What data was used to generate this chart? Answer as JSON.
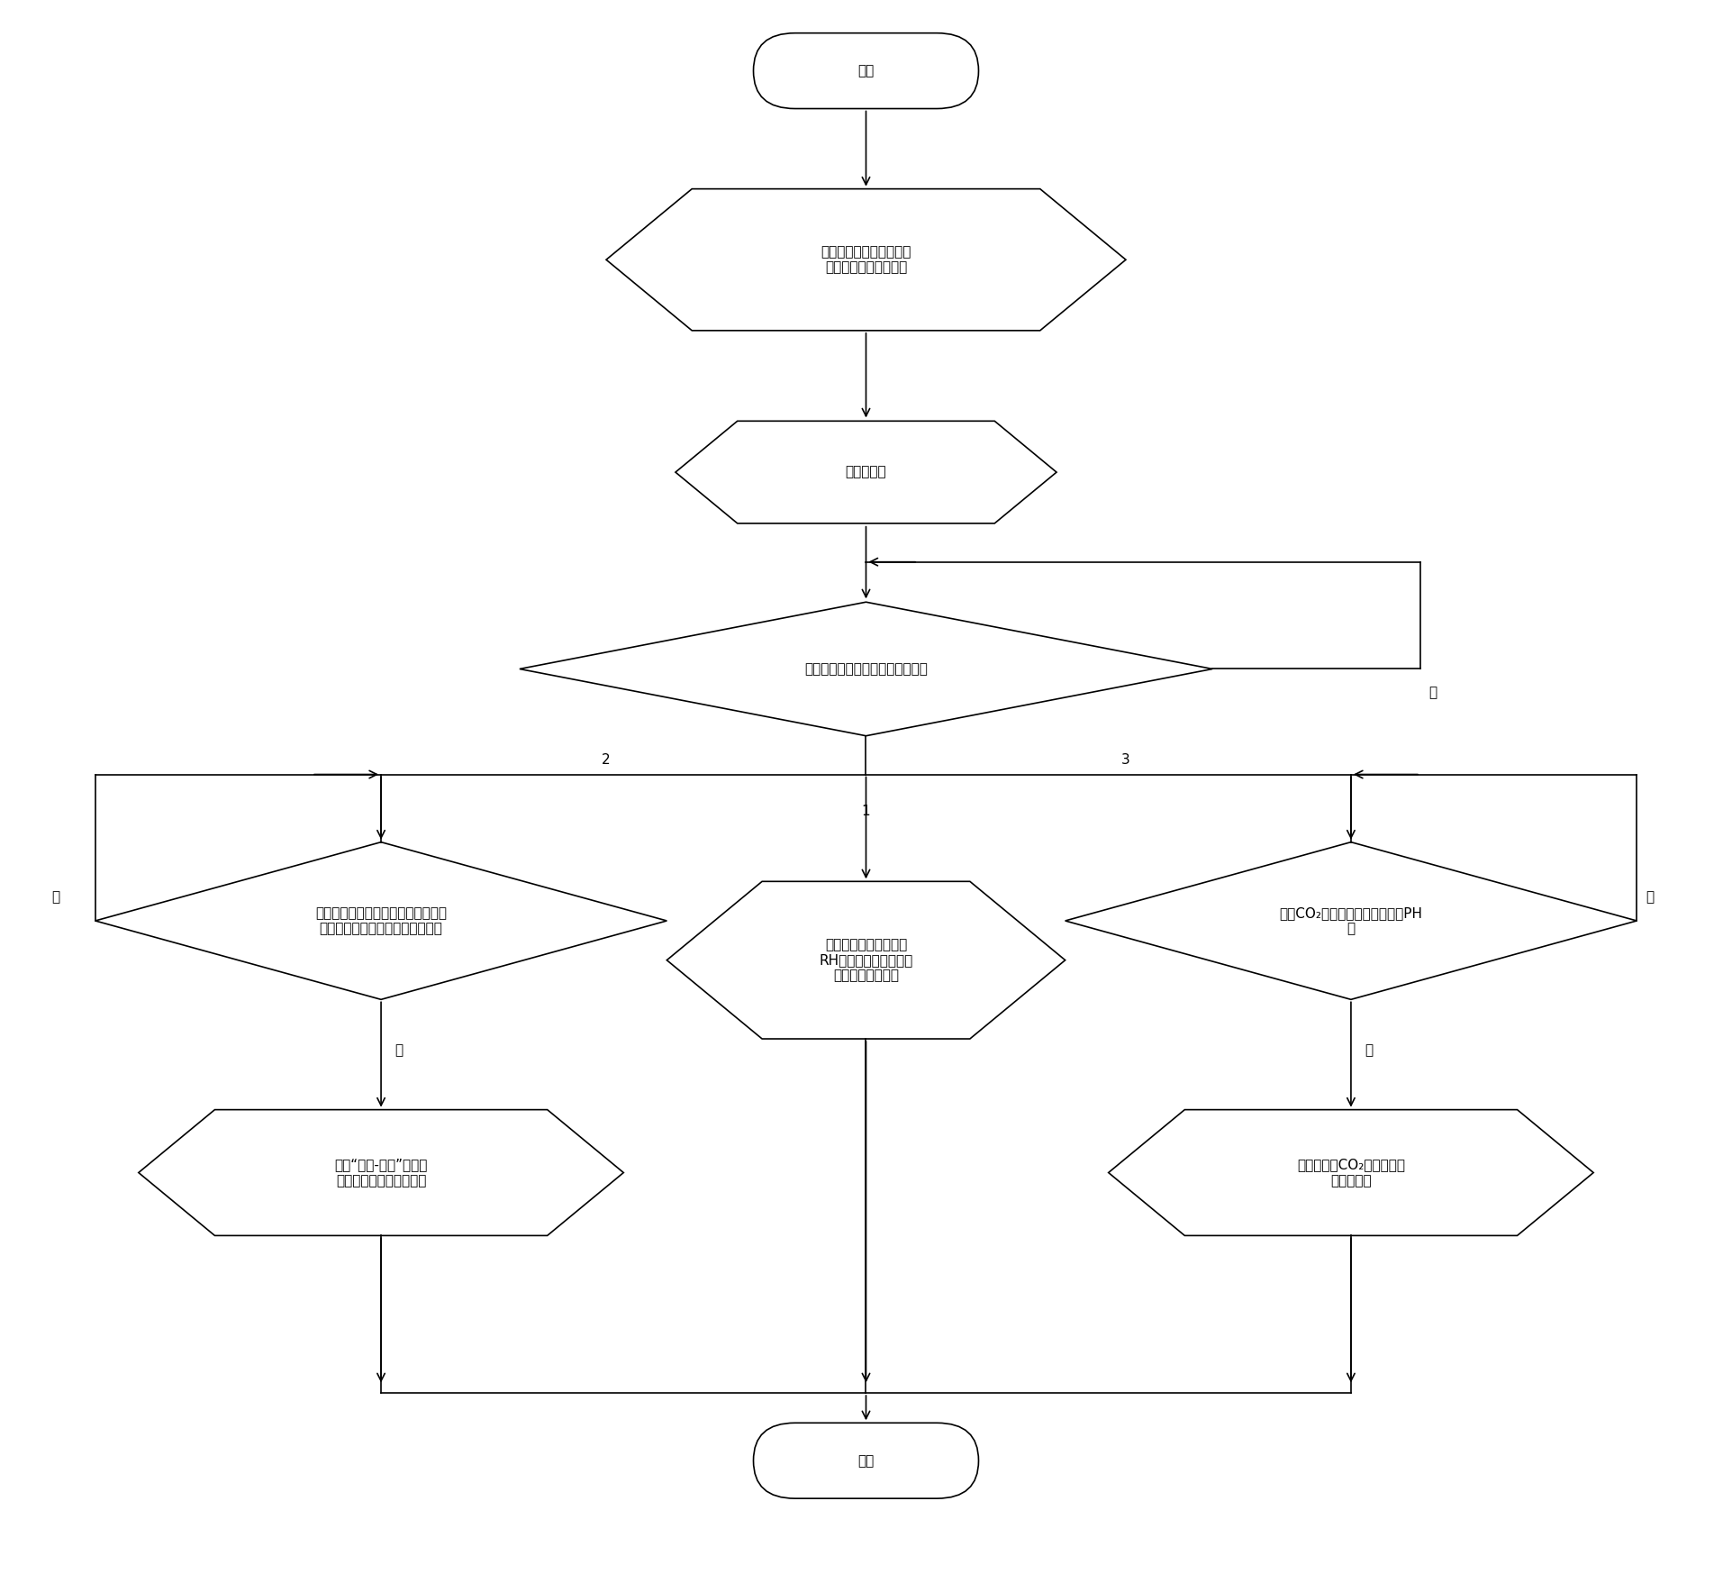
{
  "bg_color": "#ffffff",
  "line_color": "#000000",
  "text_color": "#000000",
  "font_size": 11,
  "start_text": "开始",
  "end_text": "结束",
  "box1_text": "调节钓水模拟液体高度和\n钓包位置以及氧枪位置",
  "box2_text": "启动真空泵",
  "diamond1_text": "利用液位计判定钓包液面是否稳定",
  "diamond2_text": "吹气一定时间后，加入示踪剂，测定\n电导率，是否达到稳定的电导率值",
  "box3_text": "利用阿纽巴流量计测量\nRH炉下降管液体流速，\n进而计算循环流量",
  "diamond3_text": "吹入CO₂，是否达到指定的初始PH\n值",
  "hex2_text": "利用“刺激-响应”技术测\n定示踪剂的停留时间分布",
  "hex3_text": "记录各时刼CO₂的浓度，计\n算传质系数",
  "no": "否",
  "yes": "是"
}
